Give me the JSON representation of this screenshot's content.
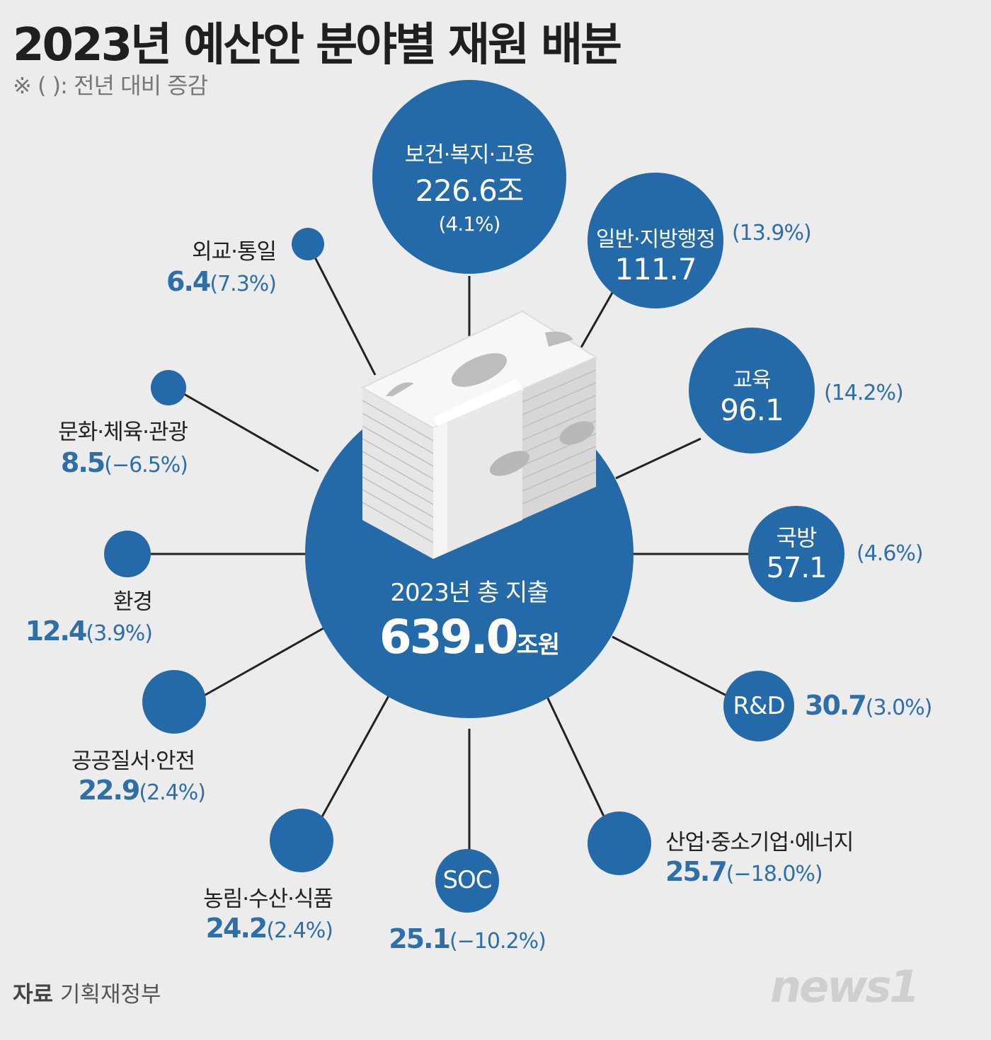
{
  "title": "2023년 예산안 분야별 재원 배분",
  "subtitle": "※ (          ): 전년 대비 증감",
  "center": {
    "label": "2023년 총 지출",
    "value": "639.0",
    "unit": "조원"
  },
  "sectors": {
    "health": {
      "name": "보건·복지·고용",
      "value": "226.6조",
      "change": "(4.1%)"
    },
    "admin": {
      "name": "일반·지방행정",
      "value": "111.7",
      "change": "(13.9%)"
    },
    "education": {
      "name": "교육",
      "value": "96.1",
      "change": "(14.2%)"
    },
    "defense": {
      "name": "국방",
      "value": "57.1",
      "change": "(4.6%)"
    },
    "rnd": {
      "name": "R&D",
      "value": "30.7",
      "change": "(3.0%)"
    },
    "industry": {
      "name": "산업·중소기업·에너지",
      "value": "25.7",
      "change": "(−18.0%)"
    },
    "soc": {
      "name": "SOC",
      "value": "25.1",
      "change": "(−10.2%)"
    },
    "agri": {
      "name": "농림·수산·식품",
      "value": "24.2",
      "change": "(2.4%)"
    },
    "safety": {
      "name": "공공질서·안전",
      "value": "22.9",
      "change": "(2.4%)"
    },
    "env": {
      "name": "환경",
      "value": "12.4",
      "change": "(3.9%)"
    },
    "culture": {
      "name": "문화·체육·관광",
      "value": "8.5",
      "change": "(−6.5%)"
    },
    "foreign": {
      "name": "외교·통일",
      "value": "6.4",
      "change": "(7.3%)"
    }
  },
  "source": {
    "label": "자료",
    "name": "기획재정부"
  },
  "logo_text": "news1",
  "colors": {
    "circle": "#2469a8",
    "line": "#222222",
    "accent_text": "#2e6fa8",
    "background": "#ececec"
  }
}
